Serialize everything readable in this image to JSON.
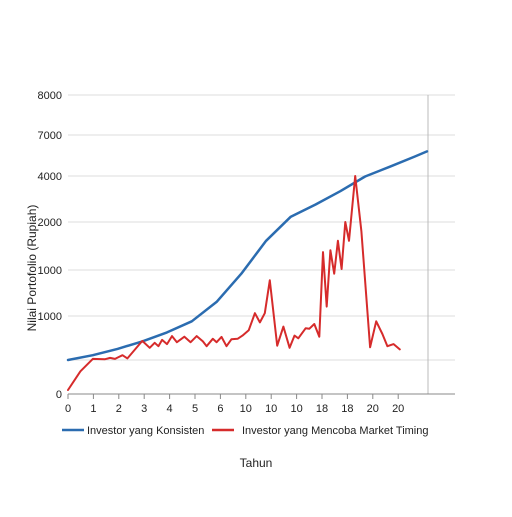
{
  "chart_data": {
    "type": "line",
    "title": "",
    "xlabel": "Tahun",
    "ylabel": "Nilai Portofolio (Rupiah)",
    "x_tick_labels": [
      "0",
      "1",
      "2",
      "3",
      "4",
      "5",
      "6",
      "10",
      "10",
      "10",
      "18",
      "18",
      "20",
      "20"
    ],
    "y_tick_labels": [
      "0",
      "",
      "1000",
      "1000",
      "2000",
      "4000",
      "7000",
      "8000"
    ],
    "grid": true,
    "legend_position": "bottom",
    "series": [
      {
        "name": "Investor yang Konsisten",
        "color": "#2b6cb0",
        "points": [
          [
            0,
            170
          ],
          [
            2,
            260
          ],
          [
            4,
            380
          ],
          [
            6,
            520
          ],
          [
            8,
            690
          ],
          [
            10,
            900
          ],
          [
            12,
            1150
          ],
          [
            14,
            1450
          ],
          [
            16,
            1800
          ],
          [
            18,
            2230
          ],
          [
            20,
            2760
          ],
          [
            22,
            3340
          ],
          [
            24,
            3980
          ],
          [
            26,
            4680
          ],
          [
            28,
            5420
          ],
          [
            29,
            5800
          ]
        ]
      },
      {
        "name": "Investor yang Mencoba Market Timing",
        "color": "#d62b2b",
        "points": [
          [
            0,
            90
          ],
          [
            1,
            140
          ],
          [
            2,
            190
          ],
          [
            3,
            185
          ],
          [
            3.4,
            210
          ],
          [
            3.8,
            190
          ],
          [
            4,
            215
          ],
          [
            4.4,
            260
          ],
          [
            4.8,
            200
          ],
          [
            6,
            530
          ],
          [
            6.6,
            400
          ],
          [
            7,
            495
          ],
          [
            7.3,
            430
          ],
          [
            7.6,
            550
          ],
          [
            8,
            470
          ],
          [
            8.4,
            620
          ],
          [
            8.8,
            505
          ],
          [
            9.4,
            610
          ],
          [
            9.9,
            505
          ],
          [
            10.4,
            620
          ],
          [
            10.9,
            520
          ],
          [
            11.2,
            430
          ],
          [
            11.7,
            570
          ],
          [
            12,
            505
          ],
          [
            12.4,
            605
          ],
          [
            12.8,
            430
          ],
          [
            13.2,
            560
          ],
          [
            13.7,
            570
          ],
          [
            14.1,
            630
          ],
          [
            14.6,
            730
          ],
          [
            15.1,
            1030
          ],
          [
            15.5,
            880
          ],
          [
            15.9,
            1030
          ],
          [
            16.3,
            1380
          ],
          [
            16.9,
            440
          ],
          [
            17.4,
            800
          ],
          [
            17.9,
            400
          ],
          [
            18.3,
            630
          ],
          [
            18.6,
            580
          ],
          [
            19.2,
            770
          ],
          [
            19.5,
            760
          ],
          [
            19.9,
            850
          ],
          [
            20.3,
            610
          ],
          [
            20.6,
            1680
          ],
          [
            20.9,
            1100
          ],
          [
            21.2,
            1700
          ],
          [
            21.5,
            1450
          ],
          [
            21.8,
            1800
          ],
          [
            22.1,
            1500
          ],
          [
            22.4,
            2000
          ],
          [
            22.7,
            1800
          ],
          [
            23.2,
            4000
          ],
          [
            23.7,
            1900
          ],
          [
            24.4,
            410
          ],
          [
            24.9,
            900
          ],
          [
            25.4,
            660
          ],
          [
            25.8,
            430
          ],
          [
            26.3,
            470
          ],
          [
            26.8,
            370
          ]
        ]
      }
    ]
  }
}
